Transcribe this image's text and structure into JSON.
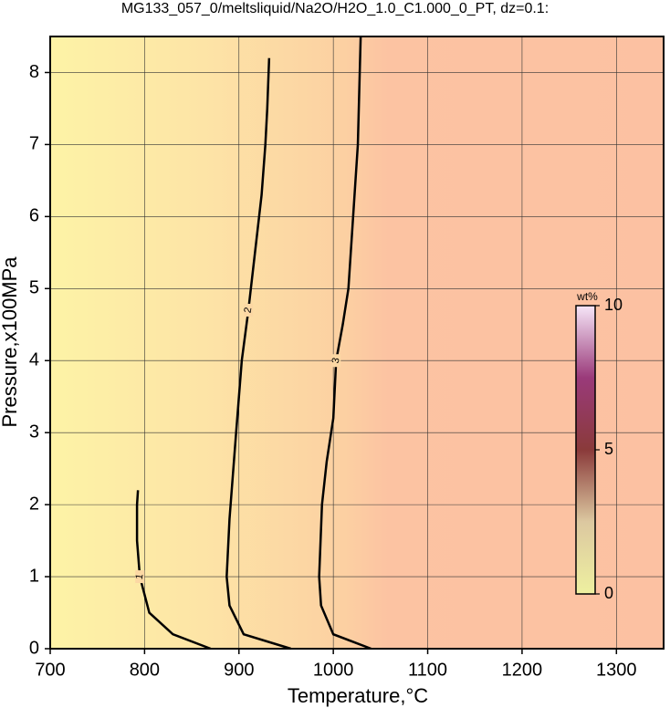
{
  "chart_data": {
    "type": "contour",
    "title": "MG133_057_0/meltsliquid/Na2O/H2O_1.0_C1.000_0_PT, dz=0.1:",
    "x_label": "Temperature,°C",
    "y_label": "Pressure,x100MPa",
    "xlim": [
      700,
      1350
    ],
    "ylim": [
      0,
      8.5
    ],
    "xticks": [
      700,
      800,
      900,
      1000,
      1100,
      1200,
      1300
    ],
    "yticks": [
      0,
      1,
      2,
      3,
      4,
      5,
      6,
      7,
      8
    ],
    "grid": true,
    "contours": [
      {
        "level": 1,
        "color": "#000000",
        "x": [
          870,
          830,
          805,
          795,
          792,
          792,
          793
        ],
        "y": [
          0,
          0.2,
          0.5,
          1,
          1.5,
          2,
          2.2
        ]
      },
      {
        "level": 2,
        "color": "#000000",
        "x": [
          955,
          905,
          890,
          887,
          890,
          897,
          903,
          910,
          917,
          924,
          928,
          930,
          932
        ],
        "y": [
          0,
          0.2,
          0.6,
          1,
          1.8,
          3,
          4,
          4.7,
          5.5,
          6.3,
          7,
          7.5,
          8.2
        ]
      },
      {
        "level": 3,
        "color": "#000000",
        "x": [
          1040,
          1000,
          987,
          985,
          988,
          993,
          1000,
          1003,
          1010,
          1016,
          1021,
          1026,
          1029
        ],
        "y": [
          0,
          0.2,
          0.6,
          1,
          2,
          2.6,
          3.2,
          4,
          4.5,
          5,
          6,
          7,
          8.5
        ]
      }
    ],
    "colorbar": {
      "label": "wt%",
      "lim": [
        0,
        10
      ],
      "ticks": [
        0,
        5,
        10
      ]
    }
  }
}
